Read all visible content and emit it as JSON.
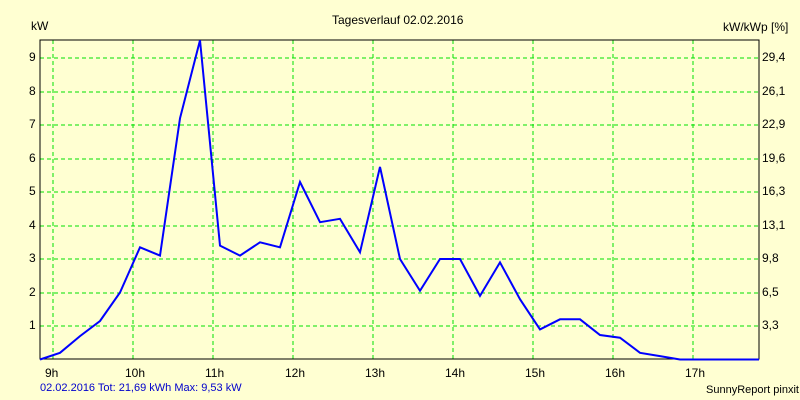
{
  "chart_data": {
    "type": "line",
    "title": "Tagesverlauf 02.02.2016",
    "ylabel": "kW",
    "ylabel_right": "kW/kWp [%]",
    "xlabel": "",
    "ylim": [
      0,
      9.53
    ],
    "x_ticks": [
      "9h",
      "10h",
      "11h",
      "12h",
      "13h",
      "14h",
      "15h",
      "16h",
      "17h"
    ],
    "y_ticks": [
      1,
      2,
      3,
      4,
      5,
      6,
      7,
      8,
      9
    ],
    "y_ticks_right": [
      "3,3",
      "6,5",
      "9,8",
      "13,1",
      "16,3",
      "19,6",
      "22,9",
      "26,1",
      "29,4"
    ],
    "grid": true,
    "line_color": "#0000ff",
    "grid_color": "#00e000",
    "series": [
      {
        "name": "kW",
        "x": [
          "8:50",
          "9:05",
          "9:20",
          "9:35",
          "9:50",
          "10:05",
          "10:20",
          "10:35",
          "10:50",
          "11:05",
          "11:20",
          "11:35",
          "11:50",
          "12:05",
          "12:20",
          "12:35",
          "12:50",
          "13:05",
          "13:20",
          "13:35",
          "13:50",
          "14:05",
          "14:20",
          "14:35",
          "14:50",
          "15:05",
          "15:20",
          "15:35",
          "15:50",
          "16:05",
          "16:20",
          "16:35",
          "16:50",
          "17:05",
          "17:20",
          "17:35",
          "17:50",
          "17:59"
        ],
        "values": [
          0.0,
          0.2,
          0.7,
          1.15,
          2.0,
          3.35,
          3.1,
          7.2,
          9.53,
          3.4,
          3.1,
          3.5,
          3.35,
          5.3,
          4.1,
          4.2,
          3.2,
          5.75,
          3.0,
          2.05,
          3.0,
          3.0,
          1.9,
          2.9,
          1.8,
          0.9,
          1.2,
          1.2,
          0.73,
          0.65,
          0.2,
          0.1,
          0.0,
          0.0,
          0.0,
          0.0,
          0.0,
          0.0
        ]
      }
    ]
  },
  "footer": {
    "summary": "02.02.2016 Tot: 21,69 kWh Max: 9,53 kW",
    "credit": "SunnyReport pinxit"
  }
}
